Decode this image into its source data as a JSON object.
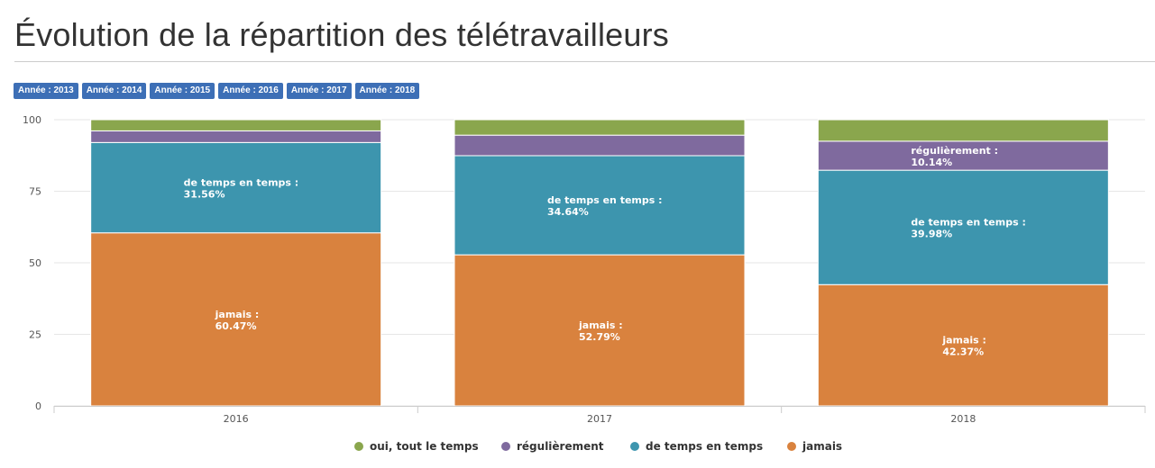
{
  "page": {
    "title": "Évolution de la répartition des télétravailleurs"
  },
  "filters": [
    {
      "label": "Année : 2013"
    },
    {
      "label": "Année : 2014"
    },
    {
      "label": "Année : 2015"
    },
    {
      "label": "Année : 2016"
    },
    {
      "label": "Année : 2017"
    },
    {
      "label": "Année : 2018"
    }
  ],
  "colors": {
    "filter_button": "#3d6fb6",
    "series": [
      "#8aa64d",
      "#7f6a9e",
      "#3d95ae",
      "#d9823e"
    ]
  },
  "chart_data": {
    "type": "bar",
    "stacked": true,
    "categories": [
      "2016",
      "2017",
      "2018"
    ],
    "ylim": [
      0,
      100
    ],
    "yticks": [
      0,
      25,
      50,
      75,
      100
    ],
    "grid": true,
    "legend_position": "bottom",
    "series": [
      {
        "name": "oui, tout le temps",
        "values": [
          3.9,
          5.4,
          7.5
        ]
      },
      {
        "name": "régulièrement",
        "values": [
          4.07,
          7.17,
          10.14
        ]
      },
      {
        "name": "de temps en temps",
        "values": [
          31.56,
          34.64,
          39.98
        ]
      },
      {
        "name": "jamais",
        "values": [
          60.47,
          52.79,
          42.37
        ]
      }
    ],
    "data_labels": [
      {
        "series": "de temps en temps",
        "category": "2016",
        "text": "de temps en temps :",
        "value": "31.56%"
      },
      {
        "series": "jamais",
        "category": "2016",
        "text": "jamais :",
        "value": "60.47%"
      },
      {
        "series": "de temps en temps",
        "category": "2017",
        "text": "de temps en temps :",
        "value": "34.64%"
      },
      {
        "series": "jamais",
        "category": "2017",
        "text": "jamais :",
        "value": "52.79%"
      },
      {
        "series": "régulièrement",
        "category": "2018",
        "text": "régulièrement :",
        "value": "10.14%"
      },
      {
        "series": "de temps en temps",
        "category": "2018",
        "text": "de temps en temps :",
        "value": "39.98%"
      },
      {
        "series": "jamais",
        "category": "2018",
        "text": "jamais :",
        "value": "42.37%"
      }
    ]
  }
}
